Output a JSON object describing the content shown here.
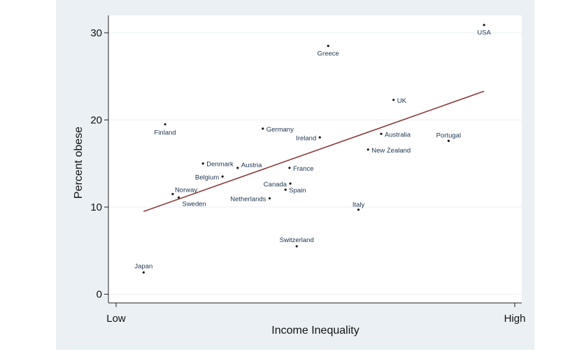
{
  "chart_data": {
    "type": "scatter",
    "title": "",
    "xlabel": "Income Inequality",
    "ylabel": "Percent obese",
    "x_tick_labels": [
      "Low",
      "High"
    ],
    "xlim": [
      0,
      1
    ],
    "ylim": [
      -1,
      32
    ],
    "yticks": [
      0,
      10,
      20,
      30
    ],
    "grid": true,
    "colors": {
      "points": "#1a1a1a",
      "fit_line": "#8b3a3a",
      "labels": "#1c3450",
      "gridlines": "#ffffff",
      "frame": "#eaf0f4"
    },
    "points": [
      {
        "name": "USA",
        "x": 0.923,
        "y": 30.9,
        "anchor": "middle",
        "dx": 0,
        "dy": 14
      },
      {
        "name": "Greece",
        "x": 0.532,
        "y": 28.5,
        "anchor": "middle",
        "dx": 0,
        "dy": 14
      },
      {
        "name": "UK",
        "x": 0.696,
        "y": 22.3,
        "anchor": "start",
        "dx": 5,
        "dy": 4
      },
      {
        "name": "Finland",
        "x": 0.123,
        "y": 19.5,
        "anchor": "middle",
        "dx": 0,
        "dy": 15
      },
      {
        "name": "Germany",
        "x": 0.368,
        "y": 19.0,
        "anchor": "start",
        "dx": 5,
        "dy": 4
      },
      {
        "name": "Ireland",
        "x": 0.511,
        "y": 18.0,
        "anchor": "end",
        "dx": -5,
        "dy": 4
      },
      {
        "name": "Australia",
        "x": 0.665,
        "y": 18.4,
        "anchor": "start",
        "dx": 5,
        "dy": 4
      },
      {
        "name": "Portugal",
        "x": 0.834,
        "y": 17.6,
        "anchor": "middle",
        "dx": 0,
        "dy": -5
      },
      {
        "name": "New Zealand",
        "x": 0.632,
        "y": 16.6,
        "anchor": "start",
        "dx": 5,
        "dy": 4
      },
      {
        "name": "Denmark",
        "x": 0.218,
        "y": 15.0,
        "anchor": "start",
        "dx": 5,
        "dy": 4
      },
      {
        "name": "Austria",
        "x": 0.305,
        "y": 14.5,
        "anchor": "start",
        "dx": 5,
        "dy": -1
      },
      {
        "name": "France",
        "x": 0.435,
        "y": 14.5,
        "anchor": "start",
        "dx": 5,
        "dy": 4
      },
      {
        "name": "Belgium",
        "x": 0.267,
        "y": 13.5,
        "anchor": "end",
        "dx": -5,
        "dy": 4
      },
      {
        "name": "Canada",
        "x": 0.437,
        "y": 12.7,
        "anchor": "end",
        "dx": -5,
        "dy": 4
      },
      {
        "name": "Spain",
        "x": 0.425,
        "y": 12.0,
        "anchor": "start",
        "dx": 5,
        "dy": 4
      },
      {
        "name": "Norway",
        "x": 0.142,
        "y": 11.5,
        "anchor": "start",
        "dx": 3,
        "dy": -3
      },
      {
        "name": "Sweden",
        "x": 0.157,
        "y": 11.1,
        "anchor": "start",
        "dx": 5,
        "dy": 12
      },
      {
        "name": "Netherlands",
        "x": 0.385,
        "y": 11.0,
        "anchor": "end",
        "dx": -5,
        "dy": 4
      },
      {
        "name": "Italy",
        "x": 0.608,
        "y": 9.7,
        "anchor": "middle",
        "dx": 0,
        "dy": -4
      },
      {
        "name": "Switzerland",
        "x": 0.453,
        "y": 5.5,
        "anchor": "middle",
        "dx": 0,
        "dy": -6
      },
      {
        "name": "Japan",
        "x": 0.069,
        "y": 2.5,
        "anchor": "middle",
        "dx": 0,
        "dy": -6
      }
    ],
    "fit_line": {
      "x": [
        0.069,
        0.923
      ],
      "y": [
        9.5,
        23.3
      ]
    }
  }
}
